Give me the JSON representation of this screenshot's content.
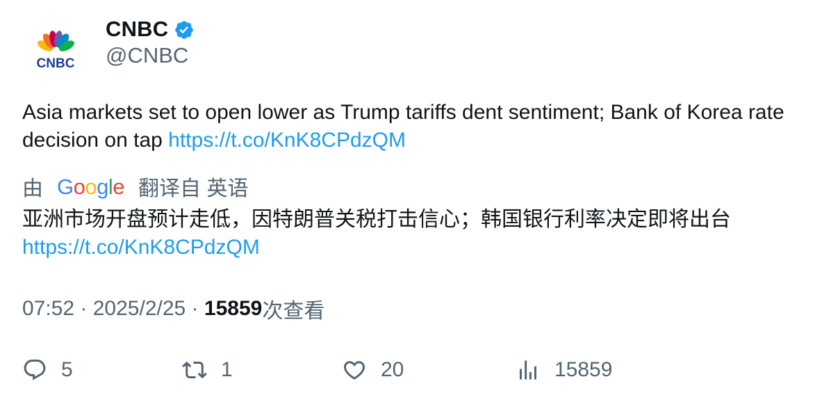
{
  "author": {
    "display_name": "CNBC",
    "handle": "@CNBC",
    "verified": true,
    "avatar_logo_text": "CNBC"
  },
  "tweet": {
    "text": "Asia markets set to open lower as Trump tariffs dent sentiment; Bank of Korea rate decision on tap ",
    "link": "https://t.co/KnK8CPdzQM"
  },
  "translation": {
    "prefix": "由",
    "provider": "Google",
    "suffix": "翻译自 英语",
    "text": "亚洲市场开盘预计走低，因特朗普关税打击信心；韩国银行利率决定即将出台",
    "link": "https://t.co/KnK8CPdzQM"
  },
  "meta": {
    "time": "07:52",
    "separator": " · ",
    "date": "2025/2/25",
    "views": "15859",
    "views_label": "次查看"
  },
  "actions": {
    "replies": "5",
    "retweets": "1",
    "likes": "20",
    "views": "15859"
  },
  "colors": {
    "link": "#1d9bf0",
    "verified": "#1d9bf0",
    "secondary_text": "#536471",
    "primary_text": "#0f1419"
  }
}
